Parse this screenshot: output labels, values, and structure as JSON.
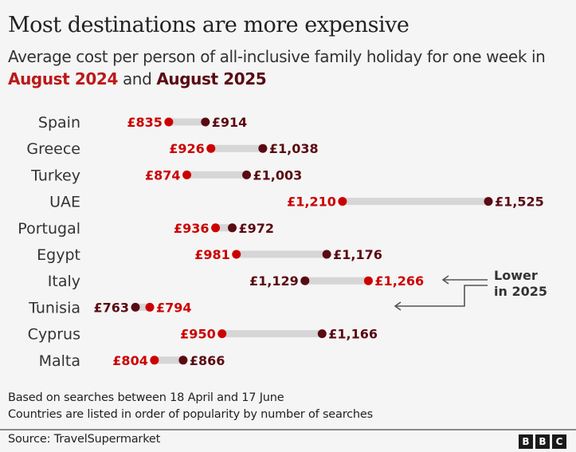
{
  "header": {
    "title": "Most destinations are more expensive",
    "subtitle_prefix": "Average cost per person of all-inclusive family holiday for one week in",
    "subtitle_year1": "August 2024",
    "subtitle_and": "and",
    "subtitle_year2": "August 2025"
  },
  "colors": {
    "aug2024": "#cc0000",
    "aug2025": "#5a0a12",
    "bar": "#d6d6d6",
    "annotation": "#555555"
  },
  "chart_data": {
    "type": "dumbbell",
    "title": "Most destinations are more expensive",
    "subtitle": "Average cost per person of all-inclusive family holiday for one week in August 2024 and August 2025",
    "unit": "£",
    "series": [
      {
        "name": "August 2024",
        "color": "#cc0000"
      },
      {
        "name": "August 2025",
        "color": "#5a0a12"
      }
    ],
    "categories": [
      "Spain",
      "Greece",
      "Turkey",
      "UAE",
      "Portugal",
      "Egypt",
      "Italy",
      "Tunisia",
      "Cyprus",
      "Malta"
    ],
    "rows": [
      {
        "country": "Spain",
        "aug2024": 835,
        "aug2025": 914,
        "label2024": "£835",
        "label2025": "£914"
      },
      {
        "country": "Greece",
        "aug2024": 926,
        "aug2025": 1038,
        "label2024": "£926",
        "label2025": "£1,038"
      },
      {
        "country": "Turkey",
        "aug2024": 874,
        "aug2025": 1003,
        "label2024": "£874",
        "label2025": "£1,003"
      },
      {
        "country": "UAE",
        "aug2024": 1210,
        "aug2025": 1525,
        "label2024": "£1,210",
        "label2025": "£1,525"
      },
      {
        "country": "Portugal",
        "aug2024": 936,
        "aug2025": 972,
        "label2024": "£936",
        "label2025": "£972"
      },
      {
        "country": "Egypt",
        "aug2024": 981,
        "aug2025": 1176,
        "label2024": "£981",
        "label2025": "£1,176"
      },
      {
        "country": "Italy",
        "aug2024": 1266,
        "aug2025": 1129,
        "label2024": "£1,266",
        "label2025": "£1,129"
      },
      {
        "country": "Tunisia",
        "aug2024": 794,
        "aug2025": 763,
        "label2024": "£794",
        "label2025": "£763"
      },
      {
        "country": "Cyprus",
        "aug2024": 950,
        "aug2025": 1166,
        "label2024": "£950",
        "label2025": "£1,166"
      },
      {
        "country": "Malta",
        "aug2024": 804,
        "aug2025": 866,
        "label2024": "£804",
        "label2025": "£866"
      }
    ],
    "annotation": {
      "line1": "Lower",
      "line2": "in 2025",
      "targets": [
        "Italy",
        "Tunisia"
      ]
    },
    "xlim": [
      763,
      1525
    ],
    "grid": false
  },
  "footer": {
    "note1": "Based on searches between 18 April and 17 June",
    "note2": "Countries are listed in order of popularity by number of searches",
    "source": "Source: TravelSupermarket",
    "logo_letters": [
      "B",
      "B",
      "C"
    ]
  }
}
